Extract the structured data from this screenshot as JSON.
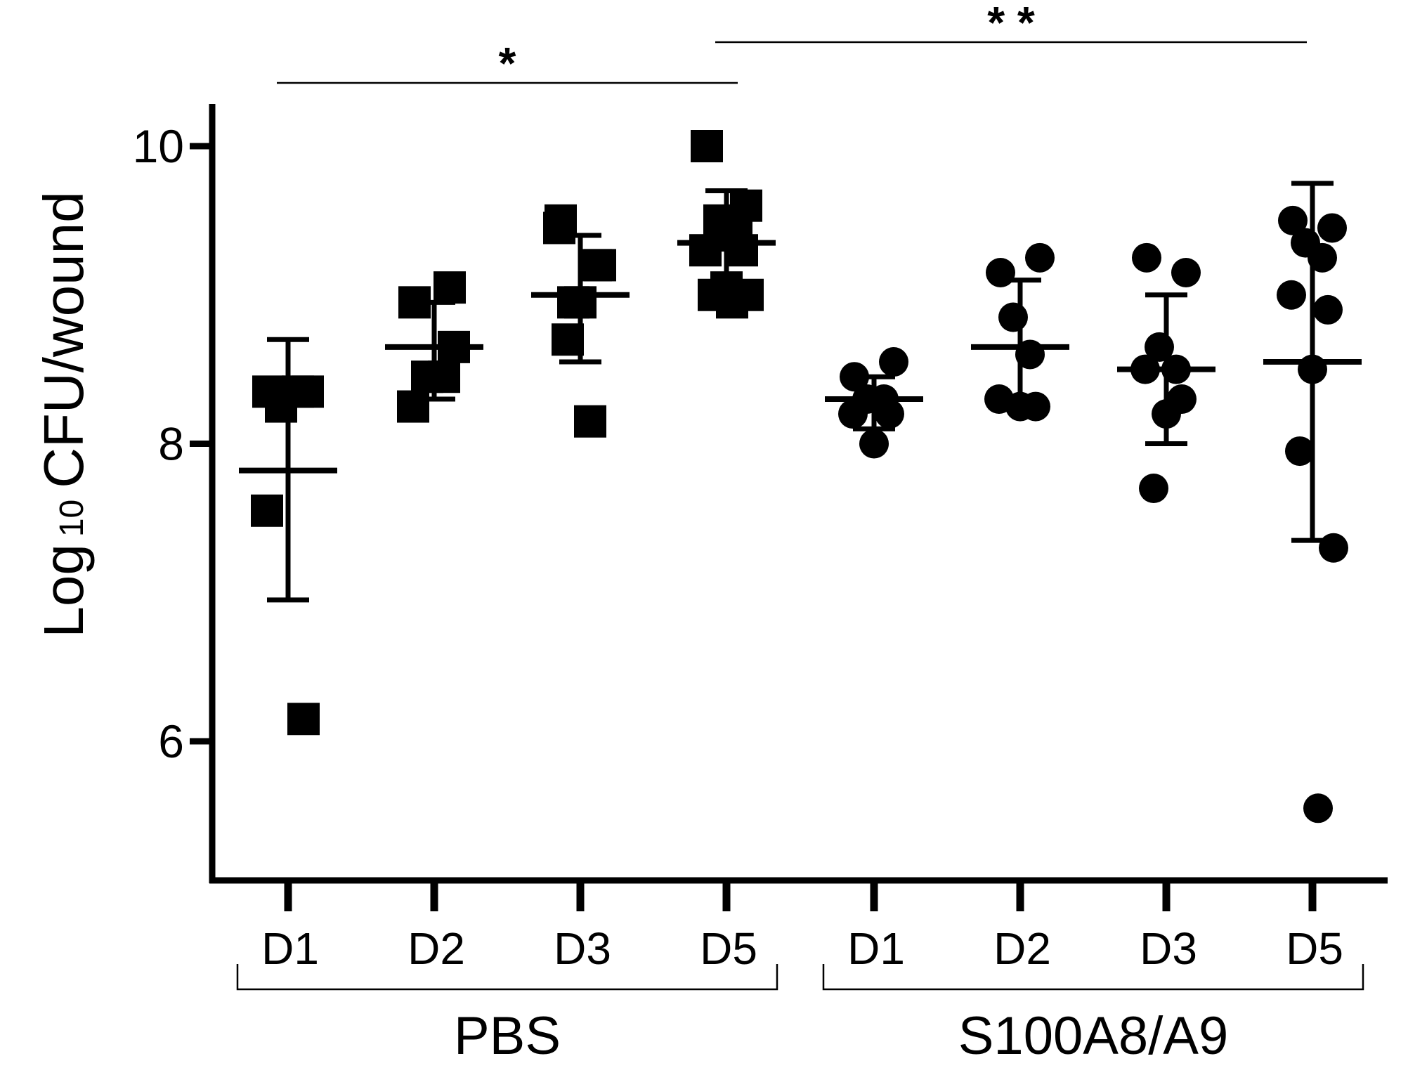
{
  "chart_data": {
    "type": "scatter",
    "ylabel": "Log 10 CFU/wound",
    "ylabel_main_pre": "Log",
    "ylabel_sub": "10",
    "ylabel_main_post": "CFU/wound",
    "ylim": [
      5.0,
      10.3
    ],
    "yticks": [
      6,
      8,
      10
    ],
    "grid": false,
    "categories": [
      "D1",
      "D2",
      "D3",
      "D5",
      "D1",
      "D2",
      "D3",
      "D5"
    ],
    "groups": [
      {
        "name": "PBS",
        "category_indices": [
          0,
          1,
          2,
          3
        ],
        "marker": "square"
      },
      {
        "name": "S100A8/A9",
        "category_indices": [
          4,
          5,
          6,
          7
        ],
        "marker": "circle"
      }
    ],
    "series": [
      {
        "group": "PBS",
        "category": "D1",
        "marker": "square",
        "points": [
          8.35,
          8.35,
          8.25,
          8.35,
          7.55,
          6.15
        ],
        "mean": 7.82,
        "sd_upper": 8.7,
        "sd_lower": 6.95
      },
      {
        "group": "PBS",
        "category": "D2",
        "marker": "square",
        "points": [
          8.95,
          8.65,
          8.45,
          8.45,
          8.25,
          9.05
        ],
        "mean": 8.65,
        "sd_upper": 8.95,
        "sd_lower": 8.3
      },
      {
        "group": "PBS",
        "category": "D3",
        "marker": "square",
        "points": [
          9.5,
          9.2,
          8.95,
          8.15,
          9.45,
          9.2,
          8.95,
          8.7
        ],
        "mean": 9.0,
        "sd_upper": 9.4,
        "sd_lower": 8.55
      },
      {
        "group": "PBS",
        "category": "D5",
        "marker": "square",
        "points": [
          10.0,
          9.6,
          9.5,
          9.4,
          9.3,
          9.3,
          9.05,
          9.0,
          9.0,
          8.95
        ],
        "mean": 9.35,
        "sd_upper": 9.7,
        "sd_lower": 9.0
      },
      {
        "group": "S100A8/A9",
        "category": "D1",
        "marker": "circle",
        "points": [
          8.45,
          8.55,
          8.3,
          8.3,
          8.2,
          8.2,
          8.0
        ],
        "mean": 8.3,
        "sd_upper": 8.45,
        "sd_lower": 8.1
      },
      {
        "group": "S100A8/A9",
        "category": "D2",
        "marker": "circle",
        "points": [
          9.15,
          9.25,
          8.85,
          8.6,
          8.3,
          8.25,
          8.25
        ],
        "mean": 8.65,
        "sd_upper": 9.1,
        "sd_lower": 8.25
      },
      {
        "group": "S100A8/A9",
        "category": "D3",
        "marker": "circle",
        "points": [
          9.25,
          9.15,
          8.65,
          8.5,
          8.5,
          8.3,
          8.2,
          7.7
        ],
        "mean": 8.5,
        "sd_upper": 9.0,
        "sd_lower": 8.0
      },
      {
        "group": "S100A8/A9",
        "category": "D5",
        "marker": "circle",
        "points": [
          9.5,
          9.45,
          9.35,
          9.25,
          9.0,
          8.9,
          8.5,
          7.95,
          7.3,
          5.55
        ],
        "mean": 8.55,
        "sd_upper": 9.75,
        "sd_lower": 7.35
      }
    ],
    "significance": [
      {
        "label": "*",
        "from_category_index": 0,
        "to_category_index": 3
      },
      {
        "label": "* *",
        "from_category_index": 3,
        "to_category_index": 7
      }
    ]
  }
}
